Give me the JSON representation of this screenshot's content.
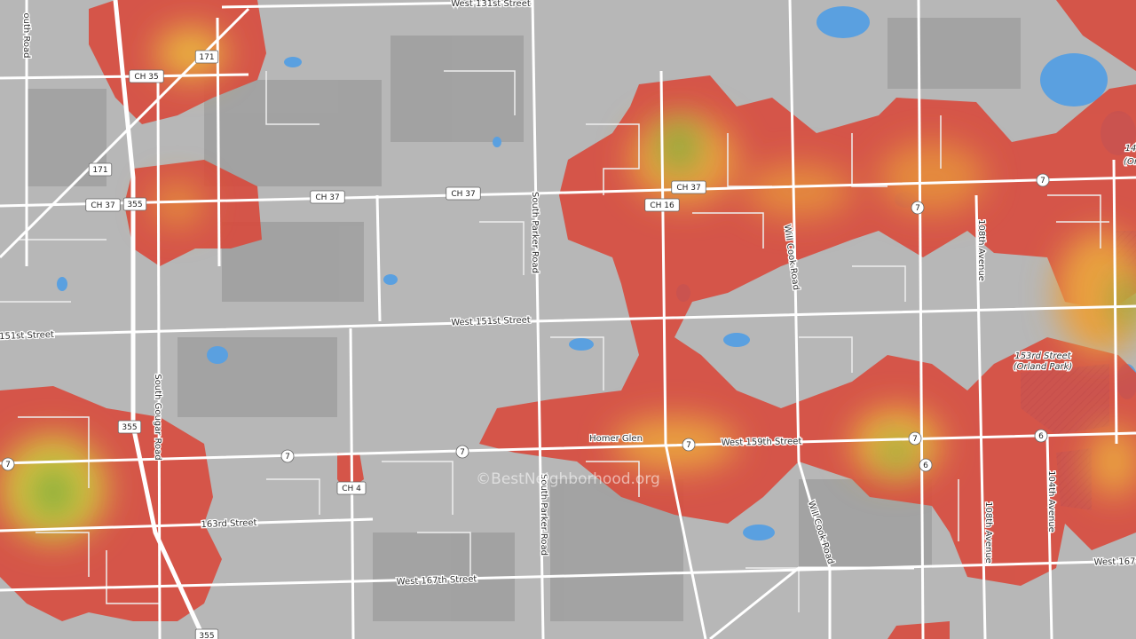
{
  "labels": [
    "West 131st Street",
    "outh Road",
    "South Parker Road",
    "Will Cook Road",
    "108th Avenue",
    "West 151st Street",
    "151st Street",
    "South Gougar Road",
    "153rd Street",
    "(Orland Park)",
    "Homer Glen",
    "West 159th Street",
    "163rd Street",
    "South Parker Road",
    "Will Cook Road",
    "108th Avenue",
    "104th Avenue",
    "West 167th Street",
    "West 167t",
    "14",
    "(Or"
  ],
  "shields": [
    "CH 35",
    "171",
    "171",
    "CH 37",
    "355",
    "CH 37",
    "CH 37",
    "CH 37",
    "CH 16",
    "7",
    "7",
    "355",
    "7",
    "7",
    "7",
    "CH 4",
    "7",
    "7",
    "6",
    "6",
    "355"
  ],
  "watermark": "©BestNeighborhood.org"
}
